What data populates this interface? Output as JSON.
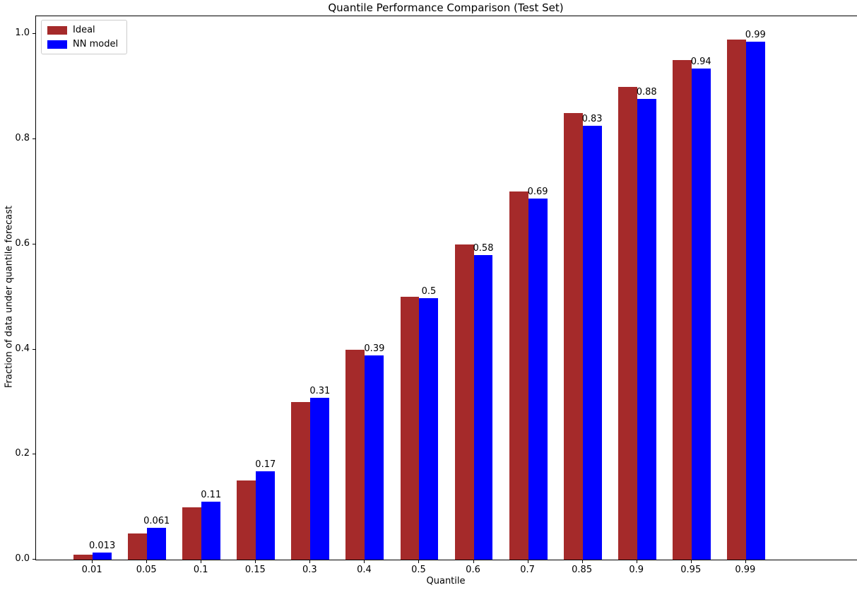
{
  "chart_data": {
    "type": "bar",
    "title": "Quantile Performance Comparison (Test Set)",
    "xlabel": "Quantile",
    "ylabel": "Fraction of data under quantile forecast",
    "categories": [
      "0.01",
      "0.05",
      "0.1",
      "0.15",
      "0.3",
      "0.4",
      "0.5",
      "0.6",
      "0.7",
      "0.85",
      "0.9",
      "0.95",
      "0.99"
    ],
    "series": [
      {
        "name": "Ideal",
        "color": "#A52A2A",
        "values": [
          0.01,
          0.05,
          0.1,
          0.15,
          0.3,
          0.4,
          0.5,
          0.6,
          0.7,
          0.85,
          0.9,
          0.95,
          0.99
        ]
      },
      {
        "name": "NN model",
        "color": "#0000FF",
        "values": [
          0.013,
          0.061,
          0.11,
          0.168,
          0.308,
          0.388,
          0.497,
          0.58,
          0.687,
          0.826,
          0.877,
          0.935,
          0.985
        ]
      }
    ],
    "bar_labels": [
      "0.013",
      "0.061",
      "0.11",
      "0.17",
      "0.31",
      "0.39",
      "0.5",
      "0.58",
      "0.69",
      "0.83",
      "0.88",
      "0.94",
      "0.99"
    ],
    "y_ticks": [
      "0.0",
      "0.2",
      "0.4",
      "0.6",
      "0.8",
      "1.0"
    ],
    "ylim": [
      0,
      1.034
    ],
    "legend_position": "upper left",
    "grid": false,
    "axis_color": "#000000",
    "text_color": "#000000"
  },
  "legend": {
    "entries": [
      {
        "label": "Ideal",
        "color": "#A52A2A"
      },
      {
        "label": "NN model",
        "color": "#0000FF"
      }
    ]
  }
}
